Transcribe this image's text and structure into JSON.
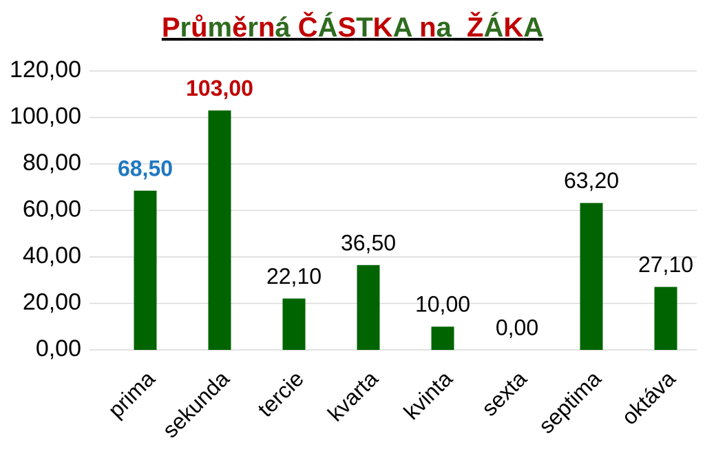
{
  "chart_data": {
    "type": "bar",
    "title": "Průměrná ČÁSTKA na  ŽÁKA",
    "title_colors": [
      "#c00000",
      "#2e6b1f"
    ],
    "categories": [
      "prima",
      "sekunda",
      "tercie",
      "kvarta",
      "kvinta",
      "sexta",
      "septima",
      "oktáva"
    ],
    "values": [
      68.5,
      103,
      22.1,
      36.5,
      10,
      0,
      63.2,
      27.1
    ],
    "value_labels": [
      "68,50",
      "103,00",
      "22,10",
      "36,50",
      "10,00",
      "0,00",
      "63,20",
      "27,10"
    ],
    "value_label_colors": [
      "#1f78c1",
      "#c00000",
      "#000000",
      "#000000",
      "#000000",
      "#000000",
      "#000000",
      "#000000"
    ],
    "value_label_weights": [
      "bold",
      "bold",
      "normal",
      "normal",
      "normal",
      "normal",
      "normal",
      "normal"
    ],
    "color": "#006400",
    "ylim": [
      0,
      120
    ],
    "yticks": [
      {
        "value": 0,
        "label": "0,00"
      },
      {
        "value": 20,
        "label": "20,00"
      },
      {
        "value": 40,
        "label": "40,00"
      },
      {
        "value": 60,
        "label": "60,00"
      },
      {
        "value": 80,
        "label": "80,00"
      },
      {
        "value": 100,
        "label": "100,00"
      },
      {
        "value": 120,
        "label": "120,00"
      }
    ],
    "grid": true
  }
}
